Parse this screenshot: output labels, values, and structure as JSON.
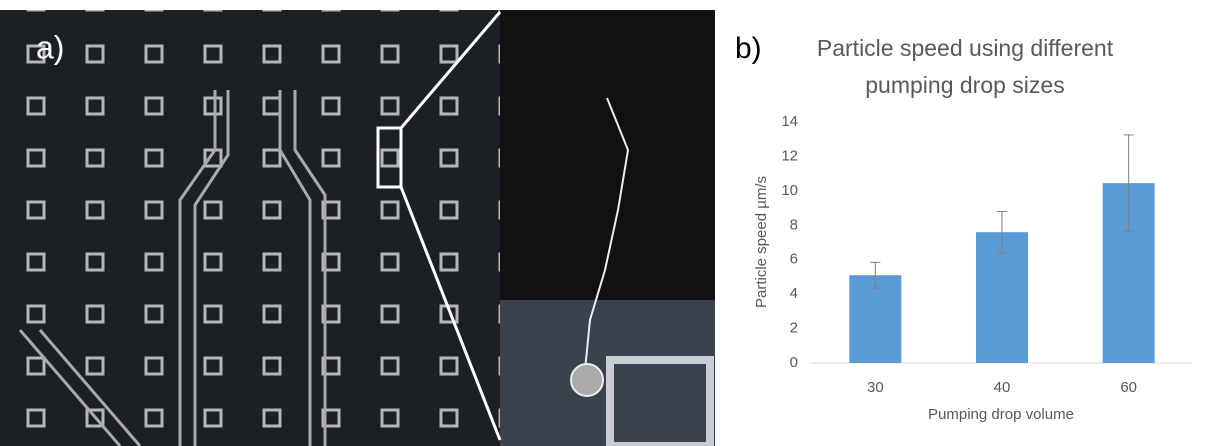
{
  "panels": [
    "a)",
    "b)"
  ],
  "chart_data": {
    "type": "bar",
    "title": "Particle speed using different pumping drop sizes",
    "x_label": "Pumping drop volume",
    "y_label": "Particle speed µm/s",
    "categories": [
      "30",
      "40",
      "60"
    ],
    "values": [
      5.1,
      7.6,
      10.45
    ],
    "errors": [
      0.75,
      1.2,
      2.8
    ],
    "color": "#5b9bd5",
    "ylim": [
      0,
      14
    ],
    "yticks": [
      0,
      2,
      4,
      6,
      8,
      10,
      12,
      14
    ],
    "grid": false
  }
}
